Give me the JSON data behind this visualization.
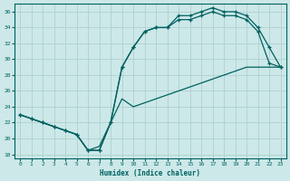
{
  "xlabel": "Humidex (Indice chaleur)",
  "bg_color": "#cce8e8",
  "grid_color": "#b0d0d0",
  "line_color": "#006060",
  "xlim": [
    -0.5,
    23.5
  ],
  "ylim": [
    17.5,
    37
  ],
  "xticks": [
    0,
    1,
    2,
    3,
    4,
    5,
    6,
    7,
    8,
    9,
    10,
    11,
    12,
    13,
    14,
    15,
    16,
    17,
    18,
    19,
    20,
    21,
    22,
    23
  ],
  "yticks": [
    18,
    20,
    22,
    24,
    26,
    28,
    30,
    32,
    34,
    36
  ],
  "line1_x": [
    0,
    1,
    2,
    3,
    4,
    5,
    6,
    7,
    8,
    9,
    10,
    11,
    12,
    13,
    14,
    15,
    16,
    17,
    18,
    19,
    20,
    21,
    22,
    23
  ],
  "line1_y": [
    23.0,
    22.5,
    22.0,
    21.5,
    21.0,
    20.5,
    18.5,
    18.5,
    22.0,
    29.0,
    31.5,
    33.5,
    34.0,
    34.0,
    35.5,
    35.5,
    36.0,
    36.5,
    36.0,
    36.0,
    35.5,
    34.0,
    31.5,
    29.0
  ],
  "line2_x": [
    0,
    1,
    2,
    3,
    4,
    5,
    6,
    7,
    8,
    9,
    10,
    11,
    12,
    13,
    14,
    15,
    16,
    17,
    18,
    19,
    20,
    21,
    22,
    23
  ],
  "line2_y": [
    23.0,
    22.5,
    22.0,
    21.5,
    21.0,
    20.5,
    18.5,
    18.5,
    22.0,
    29.0,
    31.5,
    33.5,
    34.0,
    34.0,
    35.0,
    35.0,
    35.5,
    36.0,
    35.5,
    35.5,
    35.0,
    33.5,
    29.5,
    29.0
  ],
  "line3_x": [
    0,
    1,
    2,
    3,
    4,
    5,
    6,
    7,
    8,
    9,
    10,
    11,
    12,
    13,
    14,
    15,
    16,
    17,
    18,
    19,
    20,
    21,
    22,
    23
  ],
  "line3_y": [
    23.0,
    22.5,
    22.0,
    21.5,
    21.0,
    20.5,
    18.5,
    19.0,
    22.0,
    25.0,
    24.0,
    24.5,
    25.0,
    25.5,
    26.0,
    26.5,
    27.0,
    27.5,
    28.0,
    28.5,
    29.0,
    29.0,
    29.0,
    29.0
  ]
}
